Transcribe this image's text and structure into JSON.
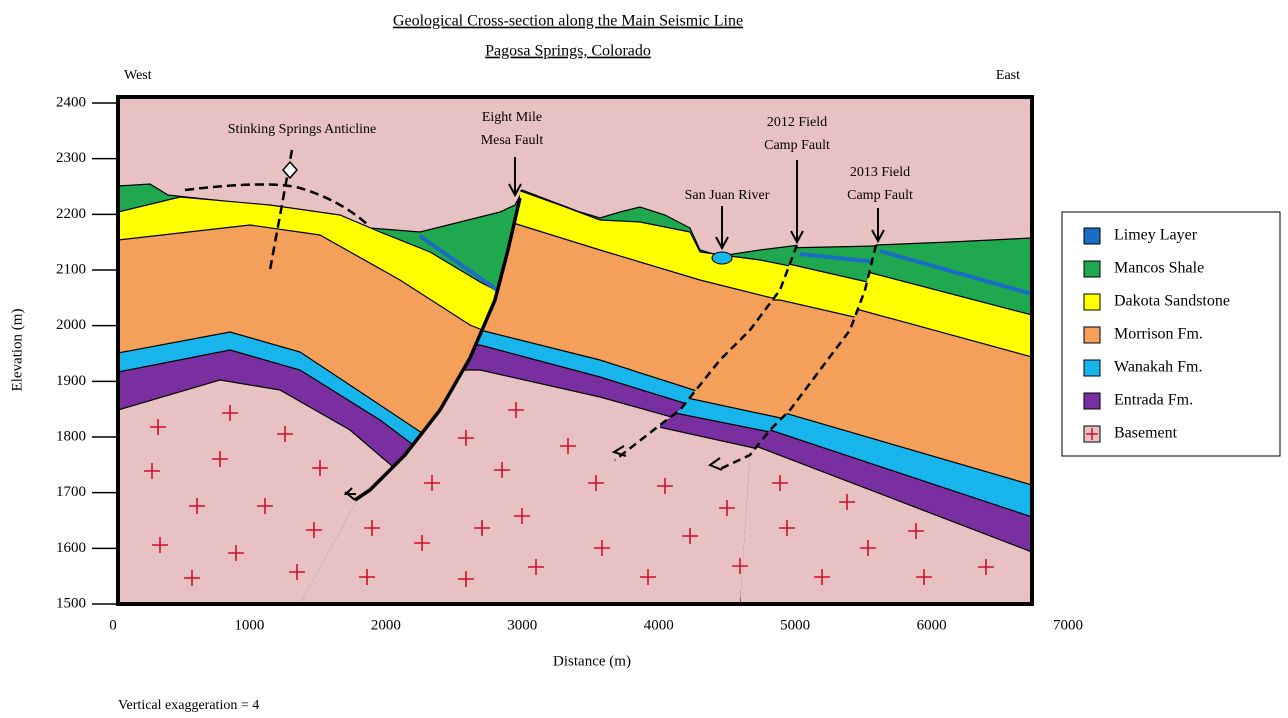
{
  "title": "Geological Cross-section along the Main Seismic Line",
  "subtitle": "Pagosa Springs, Colorado",
  "directions": {
    "west": "West",
    "east": "East"
  },
  "axes": {
    "y_label": "Elevation (m)",
    "x_label": "Distance (m)",
    "yticks": [
      1500,
      1600,
      1700,
      1800,
      1900,
      2000,
      2100,
      2200,
      2300,
      2400
    ],
    "xticks": [
      0,
      1000,
      2000,
      3000,
      4000,
      5000,
      6000,
      7000
    ]
  },
  "annotations": [
    {
      "lines": [
        "Stinking Springs Anticline"
      ]
    },
    {
      "lines": [
        "Eight Mile",
        "Mesa Fault"
      ]
    },
    {
      "lines": [
        "2012 Field",
        "Camp Fault"
      ]
    },
    {
      "lines": [
        "San Juan River"
      ]
    },
    {
      "lines": [
        "2013 Field",
        "Camp Fault"
      ]
    }
  ],
  "legend": [
    {
      "label": "Limey Layer",
      "color": "#1c6cc4"
    },
    {
      "label": "Mancos Shale",
      "color": "#1fa84f"
    },
    {
      "label": "Dakota Sandstone",
      "color": "#ffff00"
    },
    {
      "label": "Morrison Fm.",
      "color": "#f5a05a"
    },
    {
      "label": "Wanakah Fm.",
      "color": "#18b4ec"
    },
    {
      "label": "Entrada Fm.",
      "color": "#7a2fa0"
    },
    {
      "label": "Basement",
      "color": "#e8c2c2"
    }
  ],
  "footnote": "Vertical exaggeration = 4"
}
